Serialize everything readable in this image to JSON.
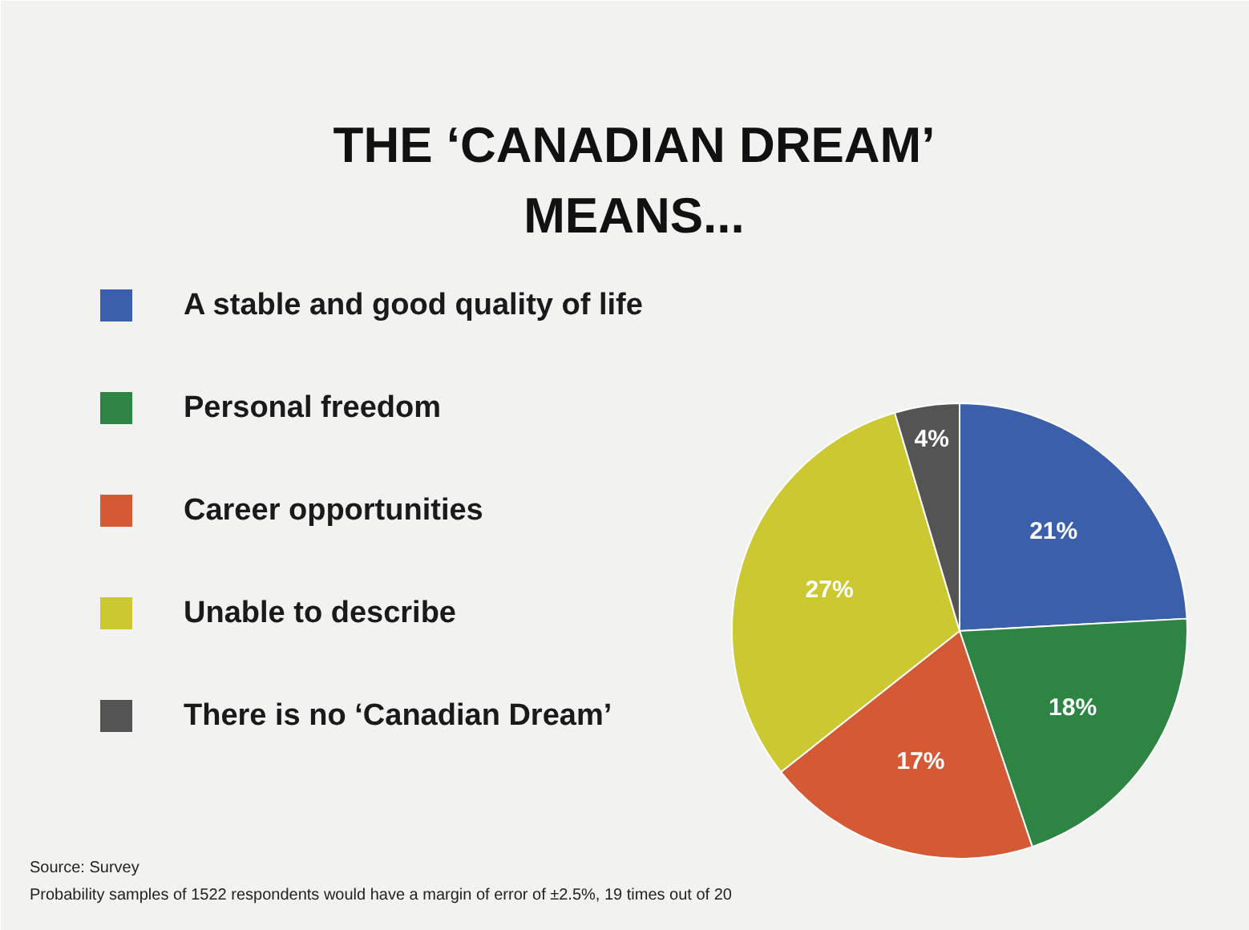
{
  "chart_data": {
    "type": "pie",
    "title": "THE ‘CANADIAN DREAM’ MEANS...",
    "categories": [
      "A stable and good quality of life",
      "Personal freedom",
      "Career opportunities",
      "Unable to describe",
      "There is no ‘Canadian Dream’"
    ],
    "values": [
      21,
      18,
      17,
      27,
      4
    ],
    "colors": [
      "#3b5fab",
      "#2d8443",
      "#d35a34",
      "#cbc832",
      "#545454"
    ],
    "value_labels": [
      "21%",
      "18%",
      "17%",
      "27%",
      "4%"
    ],
    "legend": "left",
    "annotations": [
      "Source: Survey",
      "Probability samples of 1522 respondents would have a margin of error of ±2.5%, 19 times out of 20"
    ]
  }
}
